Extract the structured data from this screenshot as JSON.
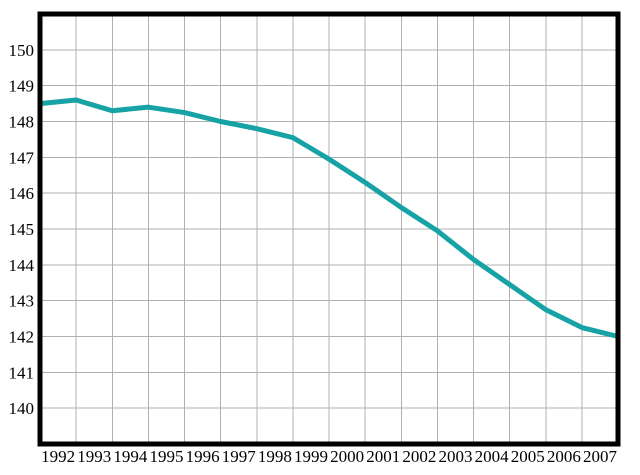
{
  "chart_data": {
    "type": "line",
    "title": "",
    "xlabel": "",
    "ylabel": "",
    "categories": [
      "1992",
      "1993",
      "1994",
      "1995",
      "1996",
      "1997",
      "1998",
      "1999",
      "2000",
      "2001",
      "2002",
      "2003",
      "2004",
      "2005",
      "2006",
      "2007"
    ],
    "values": [
      148.5,
      148.6,
      148.3,
      148.4,
      148.25,
      148.0,
      147.8,
      147.55,
      146.95,
      146.3,
      145.6,
      144.95,
      144.15,
      143.45,
      142.75,
      142.25
    ],
    "line_end_at_right_border": 142.0,
    "y_ticks": [
      "150",
      "149",
      "148",
      "147",
      "146",
      "145",
      "144",
      "143",
      "142",
      "141",
      "140"
    ],
    "y_tick_values": [
      150,
      149,
      148,
      147,
      146,
      145,
      144,
      143,
      142,
      141,
      140
    ],
    "ylim": [
      139,
      151
    ],
    "grid": true,
    "legend_position": "none",
    "colors": {
      "line": "#17a3a6",
      "grid": "#b0b0b0",
      "border": "#000000",
      "labels": "#000000",
      "background": "#ffffff"
    }
  }
}
